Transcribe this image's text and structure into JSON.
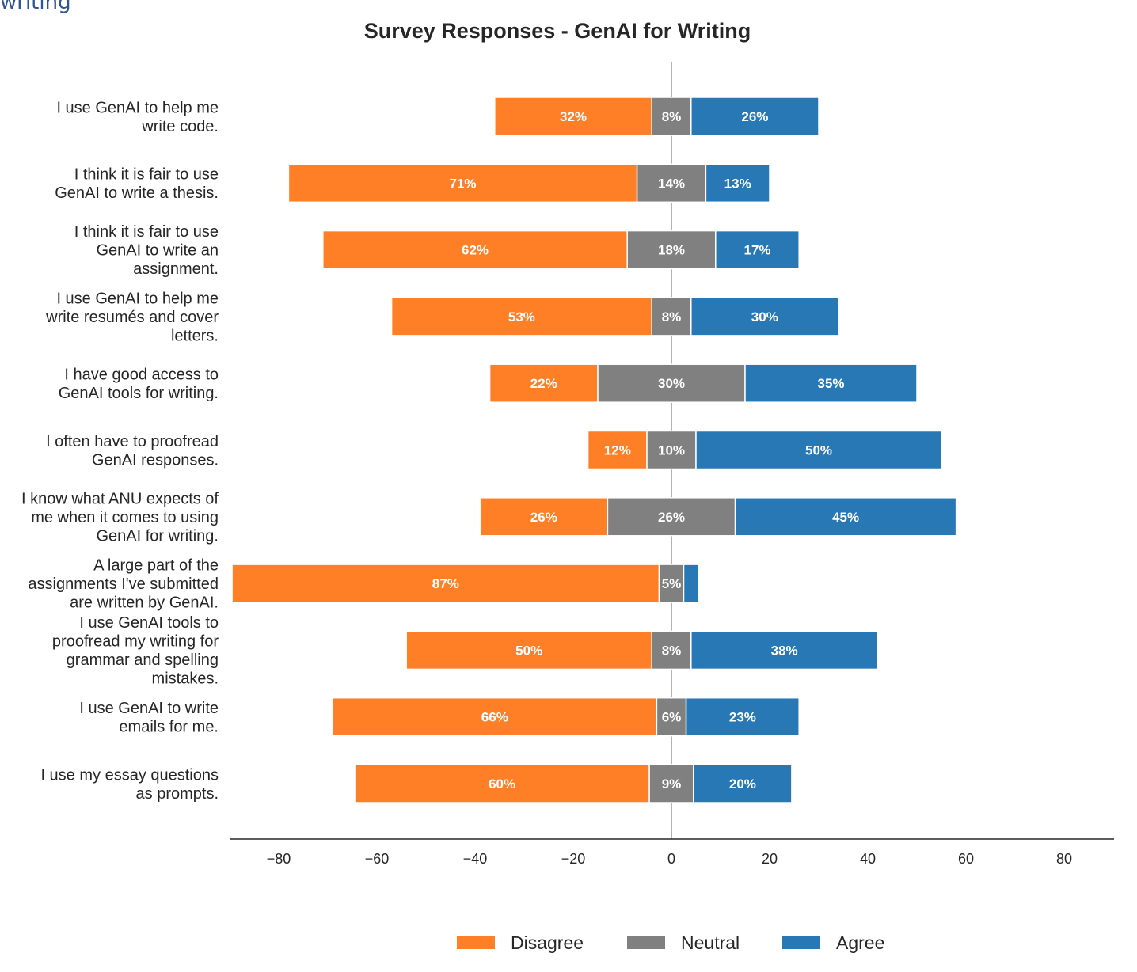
{
  "page_fragment": "writing",
  "chart_data": {
    "type": "bar",
    "orientation": "horizontal-diverging-stacked",
    "title": "Survey Responses - GenAI for Writing",
    "xlim": [
      -90,
      90
    ],
    "xticks": [
      -80,
      -60,
      -40,
      -20,
      0,
      20,
      40,
      60,
      80
    ],
    "grid": false,
    "legend_position": "bottom-center",
    "categories": [
      [
        "I use GenAI to help me",
        "write code."
      ],
      [
        "I think it is fair to use",
        "GenAI to write a thesis."
      ],
      [
        "I think it is fair to use",
        "GenAI to write an",
        "assignment."
      ],
      [
        "I use GenAI to help me",
        "write resumés and cover",
        "letters."
      ],
      [
        "I have good access to",
        "GenAI tools for writing."
      ],
      [
        "I often have to proofread",
        "GenAI responses."
      ],
      [
        "I know what ANU expects of",
        "me when it comes to using",
        "GenAI for writing."
      ],
      [
        "A large part of the",
        "assignments I've submitted",
        "are written by GenAI."
      ],
      [
        "I use GenAI tools to",
        "proofread my writing for",
        "grammar and spelling",
        "mistakes."
      ],
      [
        "I use GenAI to write",
        "emails for me."
      ],
      [
        "I use my essay questions",
        "as prompts."
      ]
    ],
    "series": [
      {
        "name": "Disagree",
        "color": "#ff7f27",
        "values": [
          32,
          71,
          62,
          53,
          22,
          12,
          26,
          87,
          50,
          66,
          60
        ]
      },
      {
        "name": "Neutral",
        "color": "#808080",
        "values": [
          8,
          14,
          18,
          8,
          30,
          10,
          26,
          5,
          8,
          6,
          9
        ]
      },
      {
        "name": "Agree",
        "color": "#2778b4",
        "values": [
          26,
          13,
          17,
          30,
          35,
          50,
          45,
          3,
          38,
          23,
          20
        ]
      }
    ],
    "data_labels": [
      [
        "32%",
        "8%",
        "26%"
      ],
      [
        "71%",
        "14%",
        "13%"
      ],
      [
        "62%",
        "18%",
        "17%"
      ],
      [
        "53%",
        "8%",
        "30%"
      ],
      [
        "22%",
        "30%",
        "35%"
      ],
      [
        "12%",
        "10%",
        "50%"
      ],
      [
        "26%",
        "26%",
        "45%"
      ],
      [
        "87%",
        "5%",
        ""
      ],
      [
        "50%",
        "8%",
        "38%"
      ],
      [
        "66%",
        "6%",
        "23%"
      ],
      [
        "60%",
        "9%",
        "20%"
      ]
    ]
  }
}
